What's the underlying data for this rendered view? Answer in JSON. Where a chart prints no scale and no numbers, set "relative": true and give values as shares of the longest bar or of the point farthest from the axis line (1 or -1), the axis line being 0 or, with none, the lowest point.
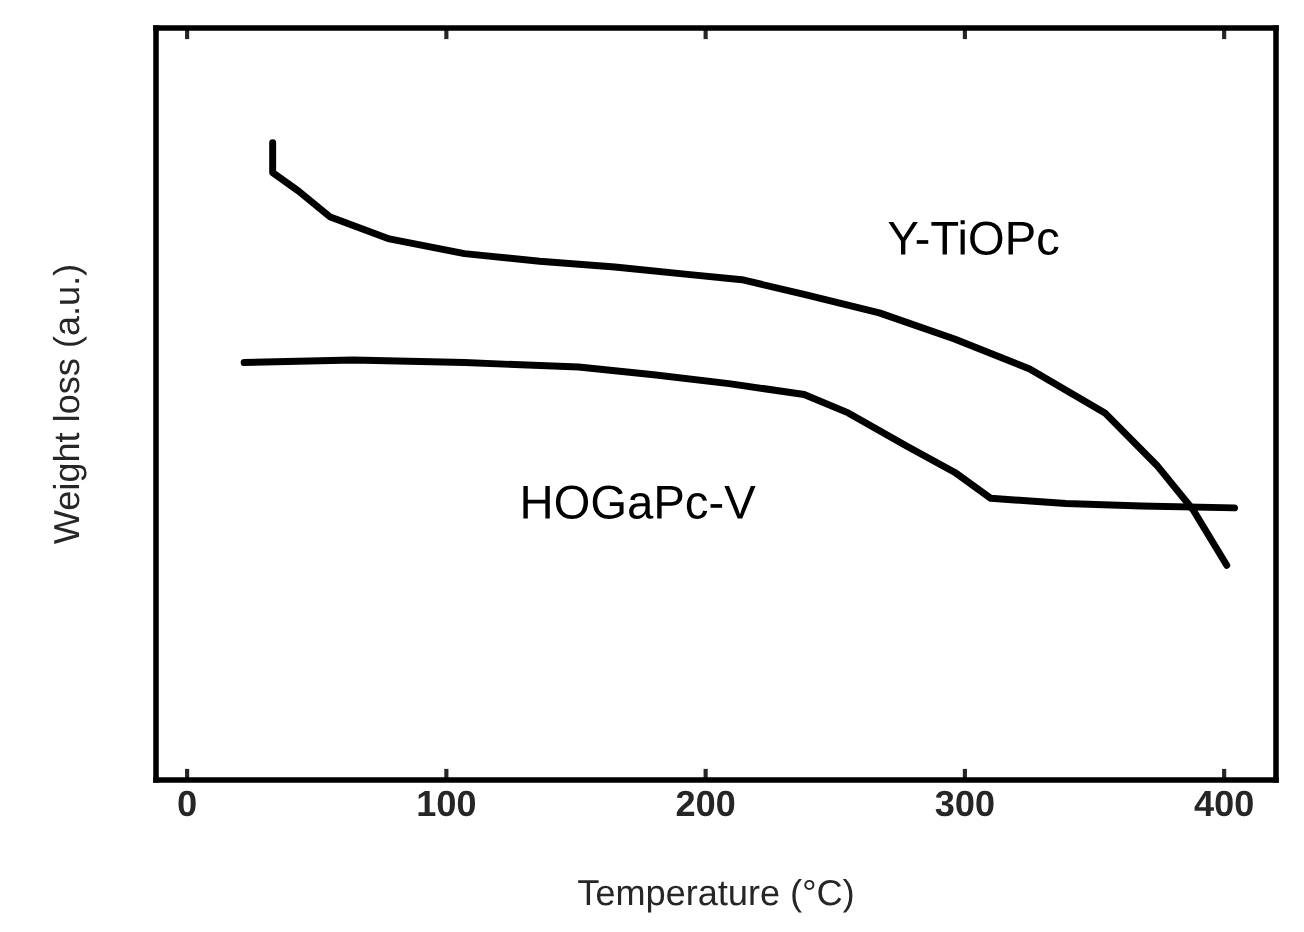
{
  "chart_data": {
    "type": "line",
    "relative": true,
    "xlabel": "Temperature (°C)",
    "ylabel": "Weight loss (a.u.)",
    "xlim": [
      -12,
      420
    ],
    "xticks": [
      0,
      100,
      200,
      300,
      400
    ],
    "grid": false,
    "legend": false,
    "tick_labels": "x",
    "series": [
      {
        "name": "Y-TiOPc",
        "color": "#000000",
        "x": [
          33,
          33,
          43,
          55,
          78,
          107,
          136,
          165,
          194,
          214,
          238,
          267,
          296,
          325,
          354,
          374,
          388,
          401
        ],
        "values": [
          1.0,
          0.953,
          0.924,
          0.884,
          0.849,
          0.826,
          0.814,
          0.805,
          0.793,
          0.785,
          0.762,
          0.733,
          0.692,
          0.645,
          0.576,
          0.494,
          0.424,
          0.337
        ]
      },
      {
        "name": "HOGaPc-V",
        "color": "#000000",
        "x": [
          22,
          64,
          107,
          151,
          180,
          209,
          238,
          255,
          278,
          296,
          310,
          339,
          368,
          404
        ],
        "values": [
          0.655,
          0.659,
          0.655,
          0.648,
          0.636,
          0.622,
          0.605,
          0.576,
          0.523,
          0.483,
          0.442,
          0.434,
          0.43,
          0.427
        ]
      }
    ]
  }
}
